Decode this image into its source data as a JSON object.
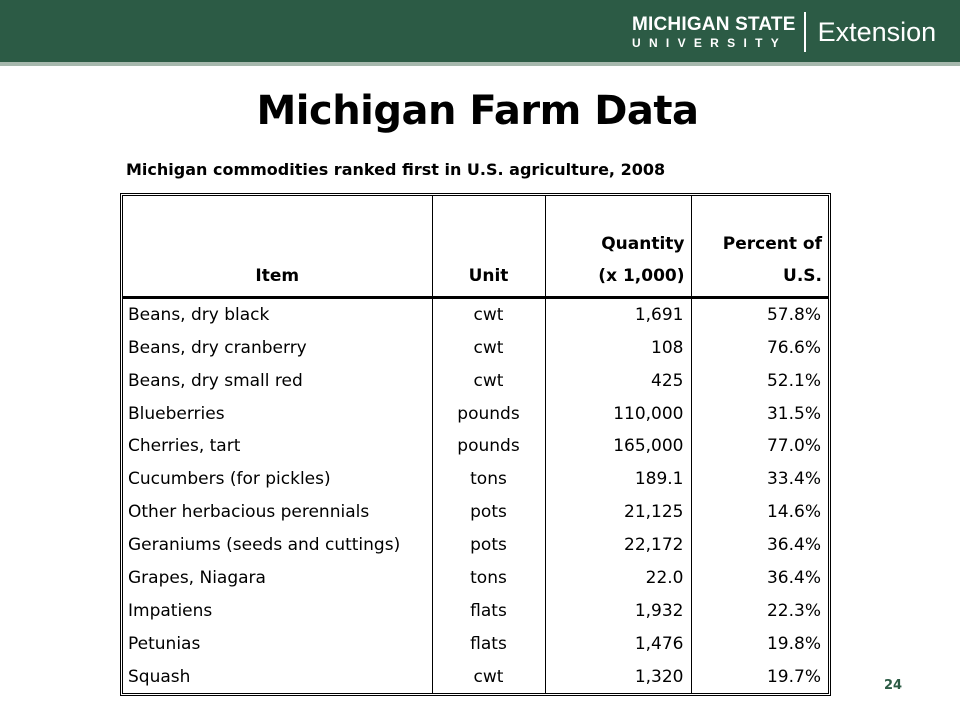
{
  "header": {
    "brand_line1": "MICHIGAN STATE",
    "brand_line2": "UNIVERSITY",
    "brand_extension": "Extension",
    "bar_color": "#2c5b45"
  },
  "slide": {
    "title": "Michigan Farm Data",
    "subtitle": "Michigan commodities ranked first in U.S. agriculture, 2008",
    "page_number": "24"
  },
  "table": {
    "headers": {
      "item": "Item",
      "unit": "Unit",
      "quantity_line1": "Quantity",
      "quantity_line2": "(x 1,000)",
      "percent_line1": "Percent of",
      "percent_line2": "U.S."
    },
    "rows": [
      {
        "item": "Beans, dry black",
        "unit": "cwt",
        "quantity": "1,691",
        "percent": "57.8%"
      },
      {
        "item": "Beans, dry cranberry",
        "unit": "cwt",
        "quantity": "108",
        "percent": "76.6%"
      },
      {
        "item": "Beans, dry small red",
        "unit": "cwt",
        "quantity": "425",
        "percent": "52.1%"
      },
      {
        "item": "Blueberries",
        "unit": "pounds",
        "quantity": "110,000",
        "percent": "31.5%"
      },
      {
        "item": "Cherries, tart",
        "unit": "pounds",
        "quantity": "165,000",
        "percent": "77.0%"
      },
      {
        "item": "Cucumbers (for pickles)",
        "unit": "tons",
        "quantity": "189.1",
        "percent": "33.4%"
      },
      {
        "item": "Other herbacious perennials",
        "unit": "pots",
        "quantity": "21,125",
        "percent": "14.6%"
      },
      {
        "item": "Geraniums (seeds and cuttings)",
        "unit": "pots",
        "quantity": "22,172",
        "percent": "36.4%"
      },
      {
        "item": "Grapes, Niagara",
        "unit": "tons",
        "quantity": "22.0",
        "percent": "36.4%"
      },
      {
        "item": "Impatiens",
        "unit": "flats",
        "quantity": "1,932",
        "percent": "22.3%"
      },
      {
        "item": "Petunias",
        "unit": "flats",
        "quantity": "1,476",
        "percent": "19.8%"
      },
      {
        "item": "Squash",
        "unit": "cwt",
        "quantity": "1,320",
        "percent": "19.7%"
      }
    ]
  }
}
